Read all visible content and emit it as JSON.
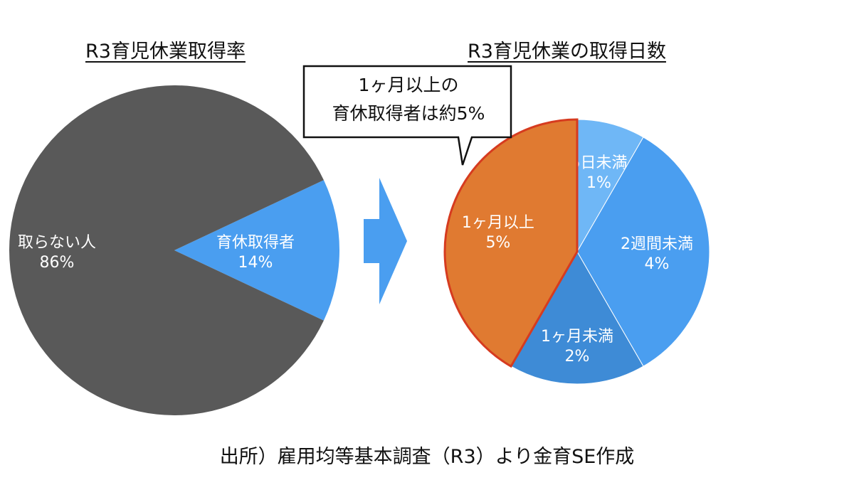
{
  "footer": "出所）雇用均等基本調査（R3）より金育SE作成",
  "callout": {
    "line1": "1ヶ月以上の",
    "line2": "育休取得者は約5%"
  },
  "colors": {
    "dark": "#595959",
    "blue": "#4A9EF0",
    "light_blue": "#6FB7F6",
    "mid_blue": "#3E8BD6",
    "orange": "#E07A31",
    "red_outline": "#D63B1F"
  },
  "chart_data": [
    {
      "type": "pie",
      "title": "R3育児休業取得率",
      "slices": [
        {
          "label": "育休取得者",
          "value": 14,
          "display": "14%",
          "color": "#4A9EF0"
        },
        {
          "label": "取らない人",
          "value": 86,
          "display": "86%",
          "color": "#595959"
        }
      ]
    },
    {
      "type": "pie",
      "title": "R3育児休業の取得日数",
      "slices": [
        {
          "label": "5日未満",
          "value": 1,
          "display": "1%",
          "color": "#6FB7F6"
        },
        {
          "label": "2週間未満",
          "value": 4,
          "display": "4%",
          "color": "#4A9EF0"
        },
        {
          "label": "1ヶ月未満",
          "value": 2,
          "display": "2%",
          "color": "#3E8BD6"
        },
        {
          "label": "1ヶ月以上",
          "value": 5,
          "display": "5%",
          "color": "#E07A31",
          "highlight": true
        }
      ]
    }
  ]
}
